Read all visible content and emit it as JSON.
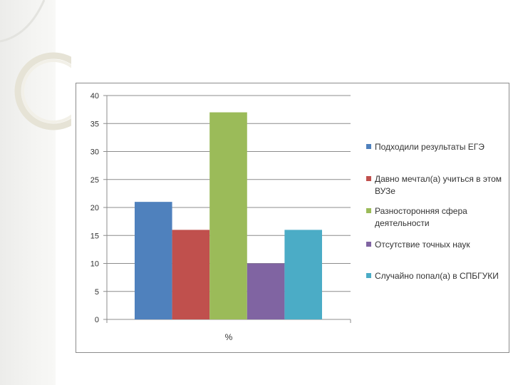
{
  "chart_data": {
    "type": "bar",
    "categories": [
      "%"
    ],
    "series": [
      {
        "name": "Подходили результаты ЕГЭ",
        "values": [
          21
        ],
        "color": "#4f81bd"
      },
      {
        "name": "Давно мечтал(а) учиться в этом ВУЗе",
        "values": [
          16
        ],
        "color": "#c0504d"
      },
      {
        "name": "Разносторонняя сфера деятельности",
        "values": [
          37
        ],
        "color": "#9bbb59"
      },
      {
        "name": "Отсутствие точных наук",
        "values": [
          10
        ],
        "color": "#8064a2"
      },
      {
        "name": "Случайно попал(а) в СПБГУКИ",
        "values": [
          16
        ],
        "color": "#4bacc6"
      }
    ],
    "ylim": [
      0,
      40
    ],
    "yticks": [
      "0",
      "5",
      "10",
      "15",
      "20",
      "25",
      "30",
      "35",
      "40"
    ],
    "grid": true,
    "legend_position": "right",
    "xlabel": "",
    "ylabel": "",
    "title": ""
  }
}
